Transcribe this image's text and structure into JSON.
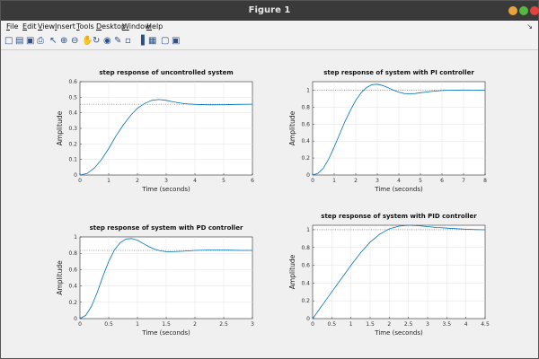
{
  "window": {
    "title": "Figure 1",
    "buttons": [
      {
        "name": "minimize",
        "color": "#e8a33d"
      },
      {
        "name": "maximize",
        "color": "#57b83f"
      },
      {
        "name": "close",
        "color": "#e2453c"
      }
    ]
  },
  "menubar": {
    "items": [
      {
        "key": "F",
        "rest": "ile"
      },
      {
        "key": "E",
        "rest": "dit"
      },
      {
        "key": "V",
        "rest": "iew"
      },
      {
        "key": "I",
        "rest": "nsert"
      },
      {
        "key": "T",
        "rest": "ools"
      },
      {
        "key": "D",
        "rest": "esktop"
      },
      {
        "key": "W",
        "rest": "indow"
      },
      {
        "key": "H",
        "rest": "elp"
      }
    ]
  },
  "toolbar": {
    "icons": [
      "new-figure-icon",
      "open-file-icon",
      "save-icon",
      "print-icon",
      "edit-plot-icon",
      "zoom-in-icon",
      "zoom-out-icon",
      "pan-icon",
      "rotate-3d-icon",
      "data-cursor-icon",
      "brush-icon",
      "link-plot-icon",
      "colorbar-icon",
      "legend-icon",
      "hide-plot-tools-icon",
      "show-plot-tools-icon"
    ]
  },
  "colors": {
    "line": "#0072bd",
    "reference": "#555555",
    "axes_bg": "#ffffff"
  },
  "chart_data": [
    {
      "type": "line",
      "title": "step response of uncontrolled system",
      "xlabel": "Time (seconds)",
      "ylabel": "Amplitude",
      "xlim": [
        0,
        6
      ],
      "ylim": [
        0,
        0.6
      ],
      "xticks": [
        0,
        1,
        2,
        3,
        4,
        5,
        6
      ],
      "yticks": [
        0,
        0.1,
        0.2,
        0.3,
        0.4,
        0.5,
        0.6
      ],
      "final_value": 0.455,
      "x": [
        0,
        0.25,
        0.5,
        0.75,
        1,
        1.25,
        1.5,
        1.75,
        2,
        2.25,
        2.5,
        2.75,
        3,
        3.25,
        3.5,
        3.75,
        4,
        4.5,
        5,
        5.5,
        6
      ],
      "y": [
        0,
        0.01,
        0.045,
        0.1,
        0.17,
        0.25,
        0.32,
        0.38,
        0.43,
        0.46,
        0.48,
        0.485,
        0.48,
        0.47,
        0.462,
        0.457,
        0.454,
        0.451,
        0.452,
        0.454,
        0.455
      ]
    },
    {
      "type": "line",
      "title": "step response of system with PI controller",
      "xlabel": "Time (seconds)",
      "ylabel": "Amplitude",
      "xlim": [
        0,
        8
      ],
      "ylim": [
        0,
        1.1
      ],
      "xticks": [
        0,
        1,
        2,
        3,
        4,
        5,
        6,
        7,
        8
      ],
      "yticks": [
        0,
        0.2,
        0.4,
        0.6,
        0.8,
        1
      ],
      "final_value": 1.0,
      "x": [
        0,
        0.25,
        0.5,
        0.75,
        1,
        1.25,
        1.5,
        1.75,
        2,
        2.25,
        2.5,
        2.75,
        3,
        3.25,
        3.5,
        3.75,
        4,
        4.25,
        4.5,
        4.75,
        5,
        5.5,
        6,
        6.5,
        7,
        7.5,
        8
      ],
      "y": [
        0,
        0.02,
        0.08,
        0.19,
        0.33,
        0.48,
        0.63,
        0.76,
        0.88,
        0.97,
        1.03,
        1.065,
        1.07,
        1.055,
        1.03,
        1.0,
        0.975,
        0.96,
        0.957,
        0.96,
        0.97,
        0.985,
        0.995,
        1.0,
        1.002,
        1.001,
        1.0
      ]
    },
    {
      "type": "line",
      "title": "step response of system with PD controller",
      "xlabel": "Time (seconds)",
      "ylabel": "Amplitude",
      "xlim": [
        0,
        3
      ],
      "ylim": [
        0,
        1
      ],
      "xticks": [
        0,
        0.5,
        1,
        1.5,
        2,
        2.5,
        3
      ],
      "yticks": [
        0,
        0.2,
        0.4,
        0.6,
        0.8,
        1
      ],
      "final_value": 0.835,
      "x": [
        0,
        0.1,
        0.2,
        0.3,
        0.4,
        0.5,
        0.6,
        0.7,
        0.8,
        0.9,
        1.0,
        1.1,
        1.2,
        1.3,
        1.4,
        1.5,
        1.6,
        1.8,
        2.0,
        2.2,
        2.4,
        2.6,
        2.8,
        3.0
      ],
      "y": [
        0,
        0.04,
        0.15,
        0.32,
        0.52,
        0.7,
        0.84,
        0.93,
        0.975,
        0.98,
        0.96,
        0.92,
        0.88,
        0.85,
        0.83,
        0.82,
        0.82,
        0.825,
        0.835,
        0.84,
        0.84,
        0.838,
        0.835,
        0.835
      ]
    },
    {
      "type": "line",
      "title": "step response of system with PID controller",
      "xlabel": "Time (seconds)",
      "ylabel": "Amplitude",
      "xlim": [
        0,
        4.5
      ],
      "ylim": [
        0,
        1.05
      ],
      "xticks": [
        0,
        0.5,
        1,
        1.5,
        2,
        2.5,
        3,
        3.5,
        4,
        4.5
      ],
      "yticks": [
        0,
        0.2,
        0.4,
        0.6,
        0.8,
        1
      ],
      "final_value": 1.0,
      "x": [
        0,
        0.1,
        0.2,
        0.3,
        0.5,
        0.75,
        1,
        1.25,
        1.5,
        1.75,
        2,
        2.25,
        2.5,
        2.75,
        3,
        3.25,
        3.5,
        3.75,
        4,
        4.25,
        4.5
      ],
      "y": [
        0,
        0.06,
        0.12,
        0.18,
        0.3,
        0.45,
        0.6,
        0.74,
        0.86,
        0.95,
        1.01,
        1.04,
        1.05,
        1.045,
        1.035,
        1.025,
        1.018,
        1.012,
        1.006,
        1.002,
        1.0
      ]
    }
  ]
}
